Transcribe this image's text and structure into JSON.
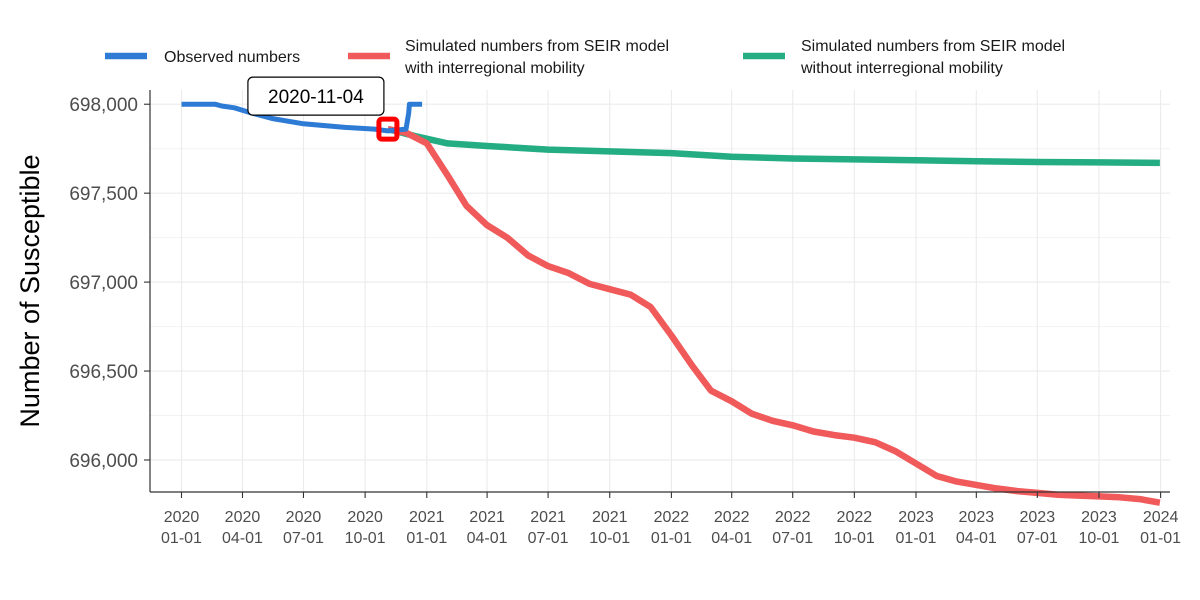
{
  "chart_data": {
    "type": "line",
    "ylabel": "Number of Susceptible",
    "xlabel": "",
    "ylim": [
      695820,
      698080
    ],
    "xlim": [
      "2019-11-15",
      "2024-01-15"
    ],
    "grid": true,
    "legend_position": "top",
    "y_ticks": [
      {
        "value": 696000,
        "label": "696,000"
      },
      {
        "value": 696500,
        "label": "696,500"
      },
      {
        "value": 697000,
        "label": "697,000"
      },
      {
        "value": 697500,
        "label": "697,500"
      },
      {
        "value": 698000,
        "label": "698,000"
      }
    ],
    "x_ticks": [
      {
        "date": "2020-01-01",
        "year": "2020",
        "md": "01-01"
      },
      {
        "date": "2020-04-01",
        "year": "2020",
        "md": "04-01"
      },
      {
        "date": "2020-07-01",
        "year": "2020",
        "md": "07-01"
      },
      {
        "date": "2020-10-01",
        "year": "2020",
        "md": "10-01"
      },
      {
        "date": "2021-01-01",
        "year": "2021",
        "md": "01-01"
      },
      {
        "date": "2021-04-01",
        "year": "2021",
        "md": "04-01"
      },
      {
        "date": "2021-07-01",
        "year": "2021",
        "md": "07-01"
      },
      {
        "date": "2021-10-01",
        "year": "2021",
        "md": "10-01"
      },
      {
        "date": "2022-01-01",
        "year": "2022",
        "md": "01-01"
      },
      {
        "date": "2022-04-01",
        "year": "2022",
        "md": "04-01"
      },
      {
        "date": "2022-07-01",
        "year": "2022",
        "md": "07-01"
      },
      {
        "date": "2022-10-01",
        "year": "2022",
        "md": "10-01"
      },
      {
        "date": "2023-01-01",
        "year": "2023",
        "md": "01-01"
      },
      {
        "date": "2023-04-01",
        "year": "2023",
        "md": "04-01"
      },
      {
        "date": "2023-07-01",
        "year": "2023",
        "md": "07-01"
      },
      {
        "date": "2023-10-01",
        "year": "2023",
        "md": "10-01"
      },
      {
        "date": "2024-01-01",
        "year": "2024",
        "md": "01-01"
      }
    ],
    "series": [
      {
        "name": "Observed numbers",
        "color": "#2e7bd6",
        "points": [
          [
            "2020-01-01",
            698000
          ],
          [
            "2020-02-20",
            698000
          ],
          [
            "2020-03-01",
            697990
          ],
          [
            "2020-03-20",
            697980
          ],
          [
            "2020-04-15",
            697950
          ],
          [
            "2020-05-15",
            697920
          ],
          [
            "2020-07-01",
            697890
          ],
          [
            "2020-09-01",
            697870
          ],
          [
            "2020-10-15",
            697860
          ],
          [
            "2020-11-04",
            697850
          ],
          [
            "2020-12-01",
            697860
          ],
          [
            "2020-12-05",
            697950
          ],
          [
            "2020-12-06",
            698000
          ],
          [
            "2020-12-25",
            698000
          ]
        ]
      },
      {
        "name": "Simulated numbers from SEIR model with interregional mobility",
        "label_lines": [
          "Simulated numbers from SEIR model",
          "with interregional mobility"
        ],
        "color": "#f05a5a",
        "points": [
          [
            "2020-11-04",
            697860
          ],
          [
            "2020-12-01",
            697840
          ],
          [
            "2021-01-01",
            697780
          ],
          [
            "2021-02-01",
            697600
          ],
          [
            "2021-03-01",
            697430
          ],
          [
            "2021-04-01",
            697320
          ],
          [
            "2021-05-01",
            697250
          ],
          [
            "2021-06-01",
            697150
          ],
          [
            "2021-07-01",
            697090
          ],
          [
            "2021-08-01",
            697050
          ],
          [
            "2021-09-01",
            696990
          ],
          [
            "2021-10-01",
            696960
          ],
          [
            "2021-11-01",
            696930
          ],
          [
            "2021-12-01",
            696860
          ],
          [
            "2022-01-01",
            696700
          ],
          [
            "2022-02-01",
            696530
          ],
          [
            "2022-03-01",
            696390
          ],
          [
            "2022-04-01",
            696330
          ],
          [
            "2022-05-01",
            696260
          ],
          [
            "2022-06-01",
            696220
          ],
          [
            "2022-07-01",
            696195
          ],
          [
            "2022-08-01",
            696160
          ],
          [
            "2022-09-01",
            696140
          ],
          [
            "2022-10-01",
            696125
          ],
          [
            "2022-11-01",
            696100
          ],
          [
            "2022-12-01",
            696050
          ],
          [
            "2023-01-01",
            695980
          ],
          [
            "2023-02-01",
            695910
          ],
          [
            "2023-03-01",
            695880
          ],
          [
            "2023-04-01",
            695860
          ],
          [
            "2023-05-01",
            695840
          ],
          [
            "2023-06-01",
            695825
          ],
          [
            "2023-07-01",
            695815
          ],
          [
            "2023-08-01",
            695805
          ],
          [
            "2023-09-01",
            695800
          ],
          [
            "2023-10-01",
            695795
          ],
          [
            "2023-11-01",
            695790
          ],
          [
            "2023-12-01",
            695780
          ],
          [
            "2023-12-31",
            695760
          ]
        ]
      },
      {
        "name": "Simulated numbers from SEIR model without interregional mobility",
        "label_lines": [
          "Simulated numbers from SEIR model",
          "without interregional mobility"
        ],
        "color": "#24ad82",
        "points": [
          [
            "2020-11-04",
            697860
          ],
          [
            "2020-12-15",
            697820
          ],
          [
            "2021-02-01",
            697780
          ],
          [
            "2021-04-01",
            697765
          ],
          [
            "2021-07-01",
            697745
          ],
          [
            "2021-10-01",
            697735
          ],
          [
            "2022-01-01",
            697725
          ],
          [
            "2022-04-01",
            697705
          ],
          [
            "2022-07-01",
            697695
          ],
          [
            "2022-10-01",
            697690
          ],
          [
            "2023-01-01",
            697685
          ],
          [
            "2023-04-01",
            697680
          ],
          [
            "2023-07-01",
            697675
          ],
          [
            "2023-10-01",
            697673
          ],
          [
            "2023-12-31",
            697670
          ]
        ]
      }
    ],
    "annotations": [
      {
        "text": "2020-11-04",
        "date": "2020-11-04",
        "value": 697860,
        "marker_color": "#ff0000"
      }
    ]
  }
}
